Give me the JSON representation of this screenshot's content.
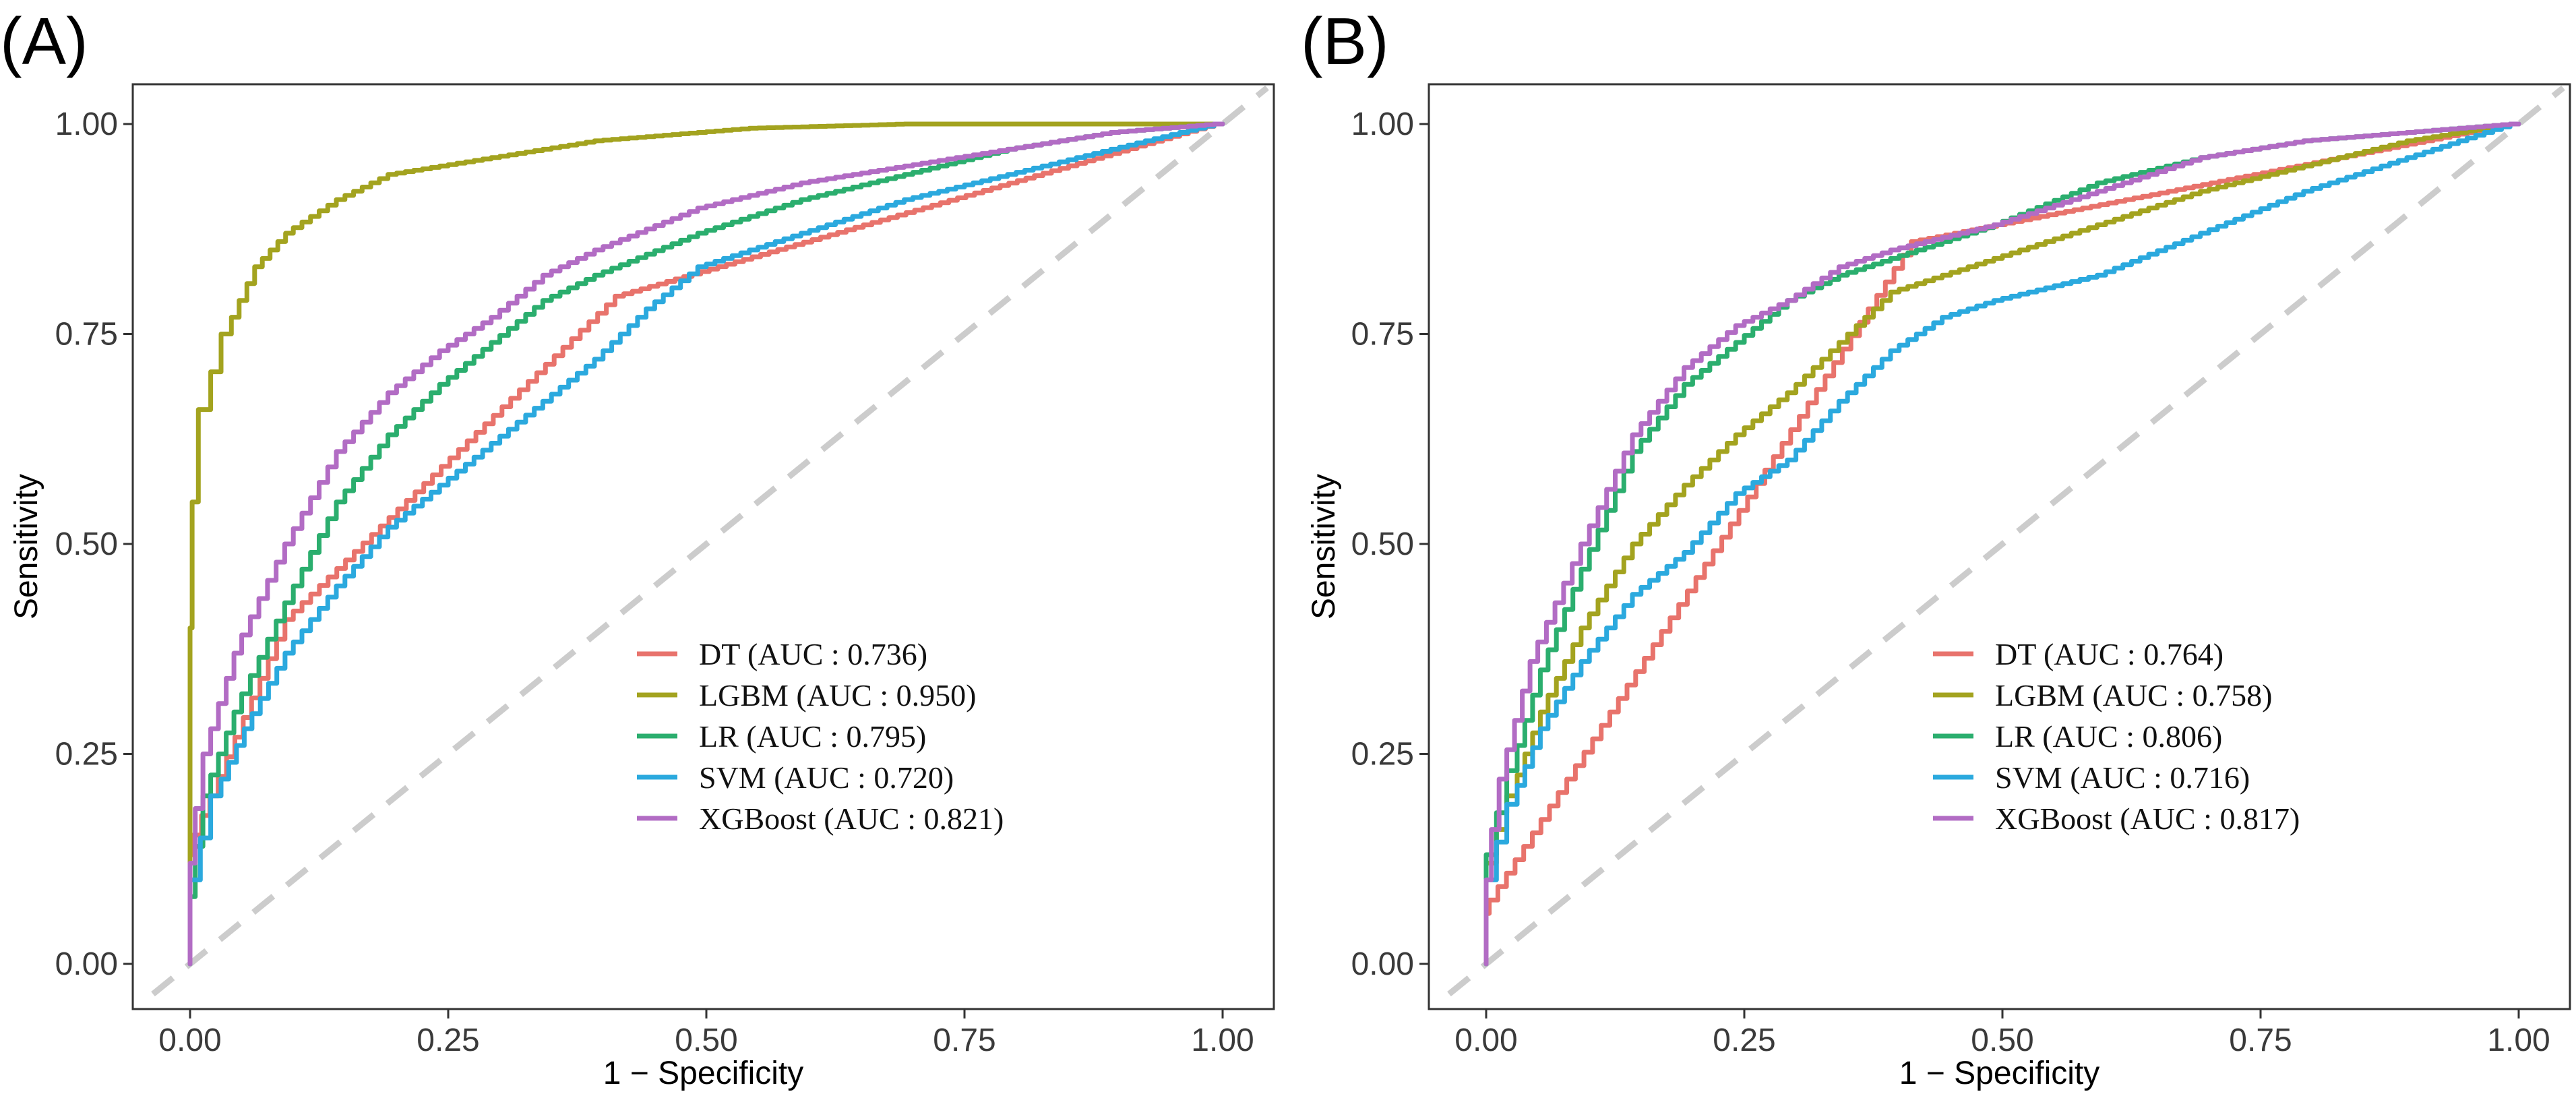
{
  "figure": {
    "panels": [
      {
        "id": "A",
        "label": "(A)",
        "xlabel": "1 − Specificity",
        "ylabel": "Sensitivity"
      },
      {
        "id": "B",
        "label": "(B)",
        "xlabel": "1 − Specificity",
        "ylabel": "Sensitivity"
      }
    ],
    "colors": {
      "DT": "#E8736C",
      "LGBM": "#A3A31F",
      "LR": "#2BAE6E",
      "SVM": "#2BA9DE",
      "XGBoost": "#B26CC4",
      "reference": "#CCCCCC"
    }
  },
  "chart_data": [
    {
      "type": "line",
      "panel": "A",
      "title": "(A)",
      "xlabel": "1 − Specificity",
      "ylabel": "Sensitivity",
      "xlim": [
        0,
        1
      ],
      "ylim": [
        0,
        1
      ],
      "xticks": [
        "0.00",
        "0.25",
        "0.50",
        "0.75",
        "1.00"
      ],
      "yticks": [
        "0.00",
        "0.25",
        "0.50",
        "0.75",
        "1.00"
      ],
      "grid": false,
      "legend_position": "bottom-right",
      "reference_line": {
        "x": [
          0,
          1
        ],
        "y": [
          0,
          1
        ],
        "style": "dashed"
      },
      "series": [
        {
          "name": "DT",
          "legend": "DT (AUC : 0.736)",
          "auc": 0.736,
          "x": [
            0,
            0.003,
            0.1,
            0.42,
            1.0
          ],
          "y": [
            0,
            0.13,
            0.41,
            0.795,
            1.0
          ]
        },
        {
          "name": "LGBM",
          "legend": "LGBM (AUC : 0.950)",
          "auc": 0.95,
          "x": [
            0,
            0.002,
            0.008,
            0.02,
            0.04,
            0.07,
            0.1,
            0.15,
            0.2,
            0.3,
            0.4,
            0.55,
            0.7,
            1.0
          ],
          "y": [
            0,
            0.4,
            0.55,
            0.66,
            0.75,
            0.83,
            0.87,
            0.91,
            0.94,
            0.96,
            0.98,
            0.995,
            1.0,
            1.0
          ]
        },
        {
          "name": "LR",
          "legend": "LR (AUC : 0.795)",
          "auc": 0.795,
          "x": [
            0,
            0.005,
            0.02,
            0.05,
            0.1,
            0.15,
            0.2,
            0.25,
            0.3,
            0.35,
            0.4,
            0.5,
            0.6,
            0.7,
            0.8,
            0.9,
            1.0
          ],
          "y": [
            0,
            0.08,
            0.2,
            0.3,
            0.43,
            0.55,
            0.63,
            0.69,
            0.74,
            0.79,
            0.82,
            0.87,
            0.91,
            0.94,
            0.97,
            0.99,
            1.0
          ]
        },
        {
          "name": "SVM",
          "legend": "SVM (AUC : 0.720)",
          "auc": 0.72,
          "x": [
            0,
            0.01,
            0.03,
            0.06,
            0.1,
            0.15,
            0.2,
            0.25,
            0.3,
            0.35,
            0.4,
            0.45,
            0.5,
            0.6,
            0.7,
            0.8,
            0.9,
            1.0
          ],
          "y": [
            0,
            0.1,
            0.2,
            0.28,
            0.37,
            0.45,
            0.52,
            0.57,
            0.62,
            0.67,
            0.72,
            0.78,
            0.83,
            0.87,
            0.91,
            0.94,
            0.97,
            1.0
          ]
        },
        {
          "name": "XGBoost",
          "legend": "XGBoost (AUC : 0.821)",
          "auc": 0.821,
          "x": [
            0,
            0.005,
            0.02,
            0.05,
            0.1,
            0.15,
            0.2,
            0.25,
            0.3,
            0.35,
            0.4,
            0.5,
            0.6,
            0.7,
            0.8,
            0.9,
            1.0
          ],
          "y": [
            0,
            0.12,
            0.25,
            0.37,
            0.5,
            0.61,
            0.68,
            0.73,
            0.77,
            0.82,
            0.85,
            0.9,
            0.93,
            0.95,
            0.97,
            0.99,
            1.0
          ]
        }
      ]
    },
    {
      "type": "line",
      "panel": "B",
      "title": "(B)",
      "xlabel": "1 − Specificity",
      "ylabel": "Sensitivity",
      "xlim": [
        0,
        1
      ],
      "ylim": [
        0,
        1
      ],
      "xticks": [
        "0.00",
        "0.25",
        "0.50",
        "0.75",
        "1.00"
      ],
      "yticks": [
        "0.00",
        "0.25",
        "0.50",
        "0.75",
        "1.00"
      ],
      "grid": false,
      "legend_position": "bottom-right",
      "reference_line": {
        "x": [
          0,
          1
        ],
        "y": [
          0,
          1
        ],
        "style": "dashed"
      },
      "series": [
        {
          "name": "DT",
          "legend": "DT (AUC : 0.764)",
          "auc": 0.764,
          "x": [
            0,
            0.003,
            0.42,
            1.0
          ],
          "y": [
            0,
            0.06,
            0.86,
            1.0
          ]
        },
        {
          "name": "LGBM",
          "legend": "LGBM (AUC : 0.758)",
          "auc": 0.758,
          "x": [
            0,
            0.01,
            0.03,
            0.06,
            0.1,
            0.15,
            0.2,
            0.25,
            0.3,
            0.35,
            0.4,
            0.5,
            0.6,
            0.7,
            0.8,
            0.9,
            1.0
          ],
          "y": [
            0,
            0.12,
            0.2,
            0.3,
            0.4,
            0.5,
            0.57,
            0.63,
            0.68,
            0.74,
            0.8,
            0.84,
            0.88,
            0.92,
            0.95,
            0.98,
            1.0
          ]
        },
        {
          "name": "LR",
          "legend": "LR (AUC : 0.806)",
          "auc": 0.806,
          "x": [
            0,
            0.01,
            0.03,
            0.06,
            0.1,
            0.15,
            0.2,
            0.25,
            0.3,
            0.35,
            0.4,
            0.5,
            0.6,
            0.7,
            0.8,
            0.9,
            1.0
          ],
          "y": [
            0,
            0.13,
            0.23,
            0.35,
            0.47,
            0.61,
            0.69,
            0.74,
            0.79,
            0.82,
            0.84,
            0.88,
            0.93,
            0.96,
            0.98,
            0.99,
            1.0
          ]
        },
        {
          "name": "SVM",
          "legend": "SVM (AUC : 0.716)",
          "auc": 0.716,
          "x": [
            0,
            0.01,
            0.03,
            0.06,
            0.1,
            0.15,
            0.2,
            0.25,
            0.3,
            0.35,
            0.4,
            0.45,
            0.5,
            0.6,
            0.7,
            0.8,
            0.9,
            1.0
          ],
          "y": [
            0,
            0.1,
            0.19,
            0.28,
            0.36,
            0.44,
            0.49,
            0.56,
            0.6,
            0.67,
            0.73,
            0.77,
            0.79,
            0.82,
            0.87,
            0.92,
            0.96,
            1.0
          ]
        },
        {
          "name": "XGBoost",
          "legend": "XGBoost (AUC : 0.817)",
          "auc": 0.817,
          "x": [
            0,
            0.005,
            0.02,
            0.05,
            0.1,
            0.15,
            0.2,
            0.25,
            0.3,
            0.35,
            0.4,
            0.5,
            0.6,
            0.7,
            0.8,
            0.9,
            1.0
          ],
          "y": [
            0,
            0.1,
            0.22,
            0.36,
            0.5,
            0.63,
            0.71,
            0.76,
            0.79,
            0.83,
            0.85,
            0.88,
            0.92,
            0.96,
            0.98,
            0.99,
            1.0
          ]
        }
      ]
    }
  ]
}
